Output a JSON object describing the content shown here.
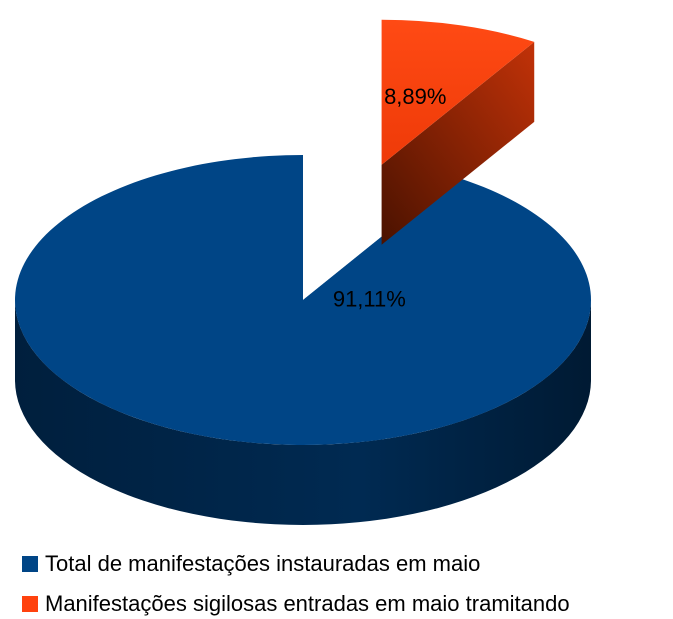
{
  "chart_data": {
    "type": "pie",
    "categories": [
      "Total de manifestações instauradas em maio",
      "Manifestações sigilosas entradas em maio tramitando"
    ],
    "values": [
      91.11,
      8.89
    ],
    "value_labels": [
      "91,11%",
      "8,89%"
    ],
    "colors": [
      "#004586",
      "#ff420e"
    ],
    "exploded": [
      false,
      true
    ],
    "legend": "bottom"
  }
}
